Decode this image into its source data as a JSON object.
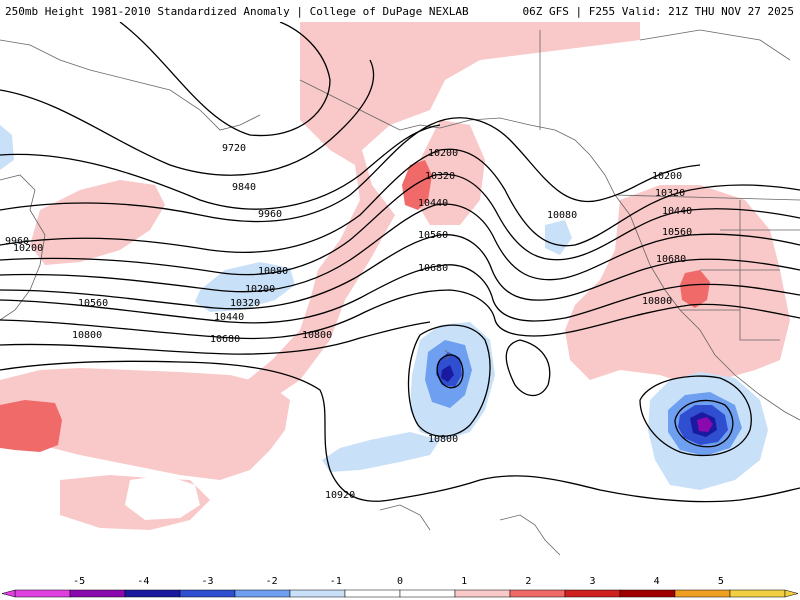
{
  "header": {
    "title_left": "250mb Height 1981-2010 Standardized Anomaly | College of DuPage NEXLAB",
    "title_right": "06Z GFS | F255 Valid: 21Z THU NOV 27 2025"
  },
  "colors": {
    "pos1": "#f9c8c8",
    "pos2": "#f06a6a",
    "neg1": "#c8e0f8",
    "neg2": "#6f9ff0",
    "neg3": "#2f4fd0",
    "neg4": "#1a1aa0",
    "neg5": "#8a0ab0"
  },
  "contours": {
    "labels": [
      "9720",
      "9840",
      "9960",
      "9960",
      "10200",
      "10200",
      "10080",
      "10200",
      "10320",
      "10440",
      "10320",
      "10440",
      "10560",
      "10680",
      "10800",
      "10560",
      "10680",
      "10800",
      "10080",
      "10200",
      "10320",
      "10440",
      "10560",
      "10680",
      "10800",
      "10800",
      "10920"
    ]
  },
  "legend": {
    "ticks": [
      "-5",
      "-4",
      "-3",
      "-2",
      "-1",
      "0",
      "1",
      "2",
      "3",
      "4",
      "5"
    ],
    "colors": [
      "#e040e0",
      "#8a0ab0",
      "#1a1aa0",
      "#2f4fd0",
      "#6f9ff0",
      "#c8e0f8",
      "#ffffff",
      "#ffffff",
      "#f9c8c8",
      "#f06a6a",
      "#d02020",
      "#a00000",
      "#f0a020",
      "#f0d040"
    ]
  }
}
